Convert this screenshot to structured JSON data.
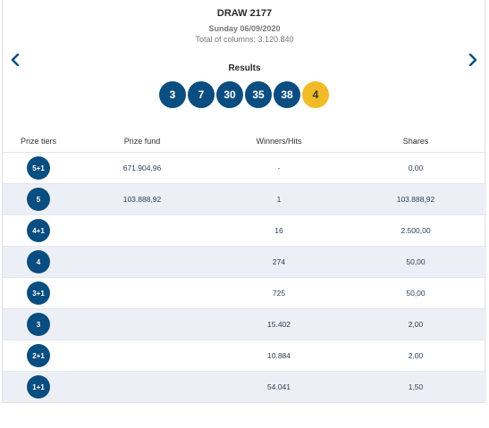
{
  "draw": {
    "title": "DRAW 2177",
    "date": "Sunday 06/09/2020",
    "columns": "Total of columns: 3.120.840"
  },
  "nav": {
    "prev_icon": "chevron-left-icon",
    "next_icon": "chevron-right-icon"
  },
  "results": {
    "label": "Results",
    "numbers": [
      "3",
      "7",
      "30",
      "35",
      "38"
    ],
    "bonus": "4"
  },
  "colors": {
    "ball": "#0a4d80",
    "bonus_ball": "#f1ba27",
    "alt_row": "#ecf0f6"
  },
  "table": {
    "headers": {
      "tier": "Prize tiers",
      "fund": "Prize fund",
      "hits": "Winners/Hits",
      "shares": "Shares"
    },
    "rows": [
      {
        "tier": "5+1",
        "fund": "671.904,96",
        "hits": "-",
        "shares": "0,00"
      },
      {
        "tier": "5",
        "fund": "103.888,92",
        "hits": "1",
        "shares": "103.888,92"
      },
      {
        "tier": "4+1",
        "fund": "",
        "hits": "16",
        "shares": "2.500,00"
      },
      {
        "tier": "4",
        "fund": "",
        "hits": "274",
        "shares": "50,00"
      },
      {
        "tier": "3+1",
        "fund": "",
        "hits": "725",
        "shares": "50,00"
      },
      {
        "tier": "3",
        "fund": "",
        "hits": "15.402",
        "shares": "2,00"
      },
      {
        "tier": "2+1",
        "fund": "",
        "hits": "10.884",
        "shares": "2,00"
      },
      {
        "tier": "1+1",
        "fund": "",
        "hits": "54.041",
        "shares": "1,50"
      }
    ]
  }
}
